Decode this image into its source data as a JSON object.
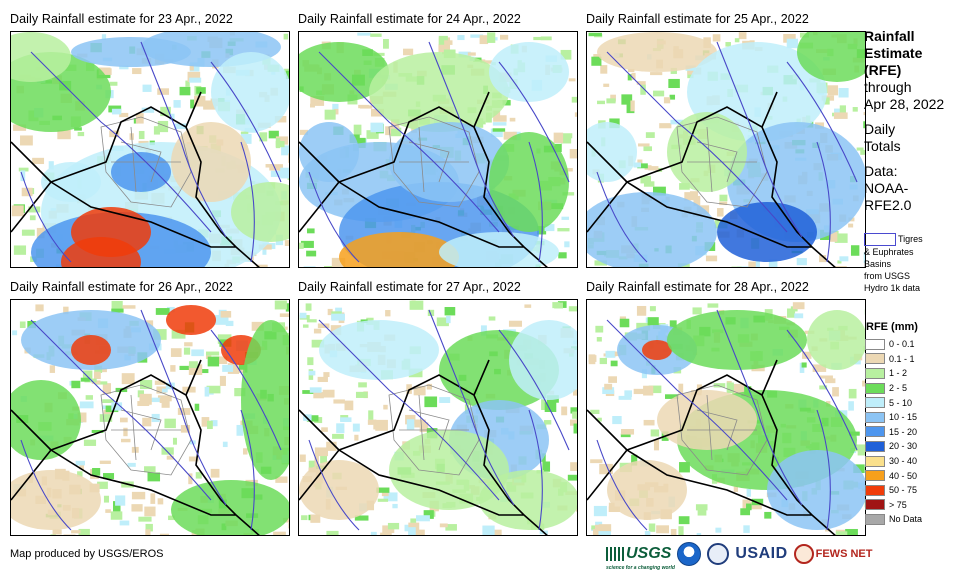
{
  "panels": [
    {
      "title": "Daily Rainfall estimate for 23 Apr., 2022"
    },
    {
      "title": "Daily Rainfall estimate for 24 Apr., 2022"
    },
    {
      "title": "Daily Rainfall estimate for 25 Apr., 2022"
    },
    {
      "title": "Daily Rainfall estimate for 26 Apr., 2022"
    },
    {
      "title": "Daily Rainfall estimate for 27 Apr., 2022"
    },
    {
      "title": "Daily Rainfall estimate for 28 Apr., 2022"
    }
  ],
  "legend": {
    "line1": "Rainfall",
    "line2": "Estimate",
    "line3": "(RFE)",
    "line4": "through",
    "line5": "Apr 28, 2022",
    "line6": "Daily",
    "line7": "Totals",
    "line8": "Data:",
    "line9": "NOAA-",
    "line10": "RFE2.0",
    "basin_text1": "Tigres",
    "basin_text2": "& Euphrates",
    "basin_text3": "Basins",
    "basin_text4": "from USGS",
    "basin_text5": "Hydro 1k data",
    "rfe_title": "RFE (mm)",
    "classes": [
      {
        "label": "0 - 0.1",
        "color": "#ffffff"
      },
      {
        "label": "0.1 - 1",
        "color": "#ecd8b4"
      },
      {
        "label": "1 - 2",
        "color": "#b8f0a0"
      },
      {
        "label": "2 - 5",
        "color": "#6cdc5a"
      },
      {
        "label": "5 - 10",
        "color": "#bfeefa"
      },
      {
        "label": "10 - 15",
        "color": "#8cc4f4"
      },
      {
        "label": "15 - 20",
        "color": "#4e96ee"
      },
      {
        "label": "20 - 30",
        "color": "#2060d8"
      },
      {
        "label": "30 - 40",
        "color": "#fae08c"
      },
      {
        "label": "40 - 50",
        "color": "#f7a01c"
      },
      {
        "label": "50 - 75",
        "color": "#f03c0a"
      },
      {
        "label": "> 75",
        "color": "#a01414"
      },
      {
        "label": "No Data",
        "color": "#a8a8a8"
      }
    ]
  },
  "footer": {
    "credit": "Map produced by USGS/EROS",
    "usgs_label": "USGS",
    "usgs_tagline": "science for a changing world",
    "usaid_label": "USAID",
    "fews_label": "FEWS NET"
  },
  "colors": {
    "border": "#000000",
    "river": "#4848c8",
    "districts": "#8a8a8a"
  }
}
